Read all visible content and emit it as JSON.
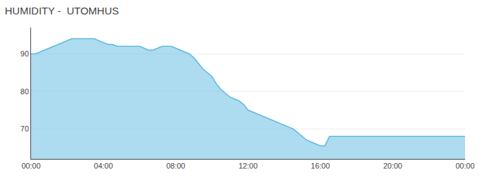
{
  "chart_data": {
    "type": "area",
    "title": "HUMIDITY -  UTOMHUS",
    "color": "#5cb8e0",
    "x": [
      0.0,
      0.25,
      0.5,
      0.75,
      1.0,
      1.25,
      1.5,
      1.75,
      2.0,
      2.25,
      2.5,
      2.75,
      3.0,
      3.25,
      3.5,
      3.75,
      4.0,
      4.25,
      4.5,
      4.75,
      5.0,
      5.25,
      5.5,
      5.75,
      6.0,
      6.25,
      6.5,
      6.75,
      7.0,
      7.25,
      7.5,
      7.75,
      8.0,
      8.25,
      8.5,
      8.75,
      9.0,
      9.25,
      9.5,
      9.75,
      10.0,
      10.25,
      10.5,
      10.75,
      11.0,
      11.25,
      11.5,
      11.75,
      12.0,
      12.25,
      12.5,
      12.75,
      13.0,
      13.25,
      13.5,
      13.75,
      14.0,
      14.25,
      14.5,
      14.75,
      15.0,
      15.25,
      15.5,
      15.75,
      16.0,
      16.25,
      16.5,
      16.75,
      17.0,
      20.0,
      24.0
    ],
    "values": [
      90.0,
      90.0,
      90.5,
      91.0,
      91.5,
      92.0,
      92.5,
      93.0,
      93.5,
      94.0,
      94.0,
      94.0,
      94.0,
      94.0,
      94.0,
      93.5,
      93.0,
      92.5,
      92.5,
      92.0,
      92.0,
      92.0,
      92.0,
      92.0,
      92.0,
      91.5,
      91.0,
      91.0,
      91.5,
      92.0,
      92.0,
      92.0,
      91.5,
      91.0,
      90.5,
      90.0,
      89.0,
      87.5,
      86.0,
      85.0,
      84.0,
      82.0,
      80.5,
      79.5,
      78.5,
      78.0,
      77.5,
      76.5,
      75.0,
      74.5,
      74.0,
      73.5,
      73.0,
      72.5,
      72.0,
      71.5,
      71.0,
      70.5,
      70.0,
      69.0,
      68.0,
      67.0,
      66.5,
      66.0,
      65.5,
      65.5,
      68.0,
      68.0,
      68.0,
      68.0,
      68.0
    ],
    "xlim": [
      0,
      24
    ],
    "xticks": [
      {
        "value": 0,
        "label": "00:00"
      },
      {
        "value": 4,
        "label": "04:00"
      },
      {
        "value": 8,
        "label": "08:00"
      },
      {
        "value": 12,
        "label": "12:00"
      },
      {
        "value": 16,
        "label": "16:00"
      },
      {
        "value": 20,
        "label": "20:00"
      },
      {
        "value": 24,
        "label": "00:00"
      }
    ],
    "ylim": [
      62,
      97
    ],
    "yticks": [
      70,
      80,
      90
    ],
    "grid": "y"
  }
}
